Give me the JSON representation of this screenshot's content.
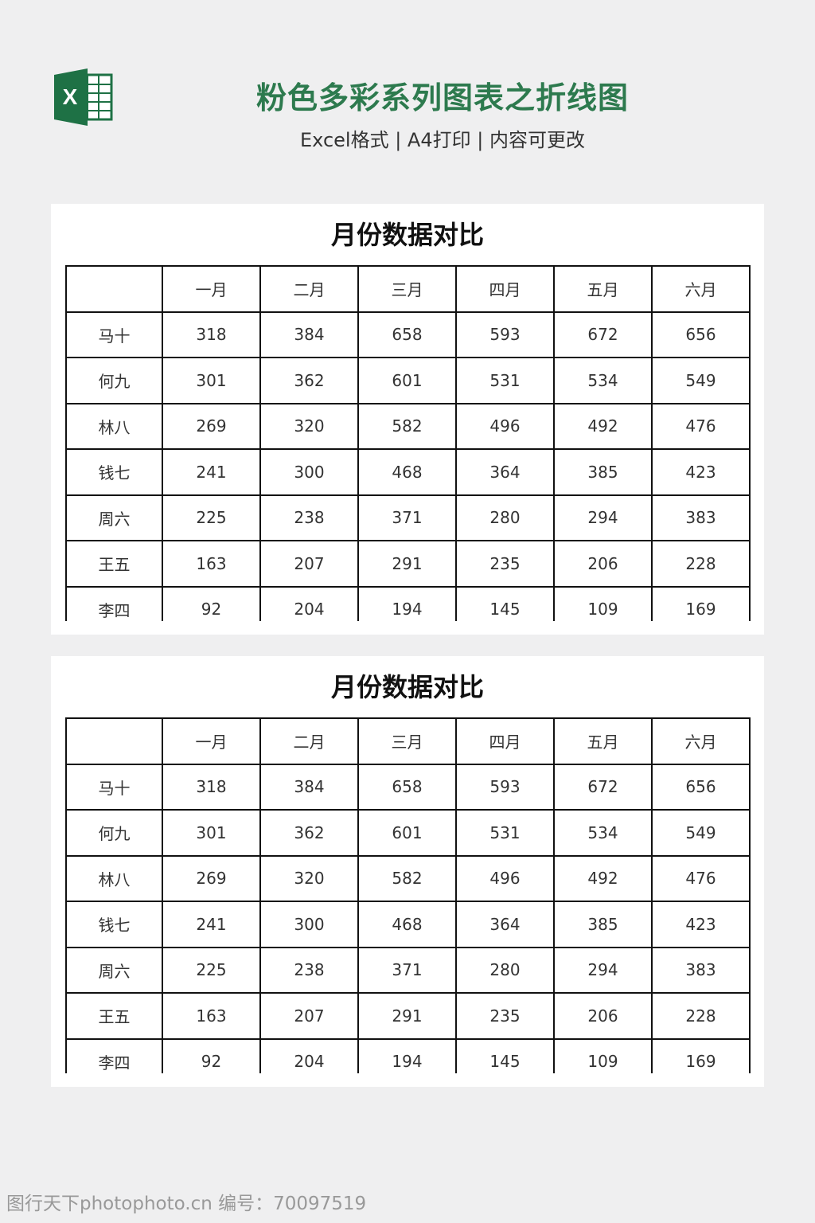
{
  "header": {
    "title": "粉色多彩系列图表之折线图",
    "subtitle": "Excel格式 | A4打印 | 内容可更改"
  },
  "tables": [
    {
      "title": "月份数据对比",
      "columns": [
        "一月",
        "二月",
        "三月",
        "四月",
        "五月",
        "六月"
      ],
      "rows": [
        [
          "马十",
          318,
          384,
          658,
          593,
          672,
          656
        ],
        [
          "何九",
          301,
          362,
          601,
          531,
          534,
          549
        ],
        [
          "林八",
          269,
          320,
          582,
          496,
          492,
          476
        ],
        [
          "钱七",
          241,
          300,
          468,
          364,
          385,
          423
        ],
        [
          "周六",
          225,
          238,
          371,
          280,
          294,
          383
        ],
        [
          "王五",
          163,
          207,
          291,
          235,
          206,
          228
        ],
        [
          "李四",
          92,
          204,
          194,
          145,
          109,
          169
        ]
      ]
    },
    {
      "title": "月份数据对比",
      "columns": [
        "一月",
        "二月",
        "三月",
        "四月",
        "五月",
        "六月"
      ],
      "rows": [
        [
          "马十",
          318,
          384,
          658,
          593,
          672,
          656
        ],
        [
          "何九",
          301,
          362,
          601,
          531,
          534,
          549
        ],
        [
          "林八",
          269,
          320,
          582,
          496,
          492,
          476
        ],
        [
          "钱七",
          241,
          300,
          468,
          364,
          385,
          423
        ],
        [
          "周六",
          225,
          238,
          371,
          280,
          294,
          383
        ],
        [
          "王五",
          163,
          207,
          291,
          235,
          206,
          228
        ],
        [
          "李四",
          92,
          204,
          194,
          145,
          109,
          169
        ]
      ]
    }
  ],
  "watermark": "图行天下photophoto.cn 编号：70097519"
}
